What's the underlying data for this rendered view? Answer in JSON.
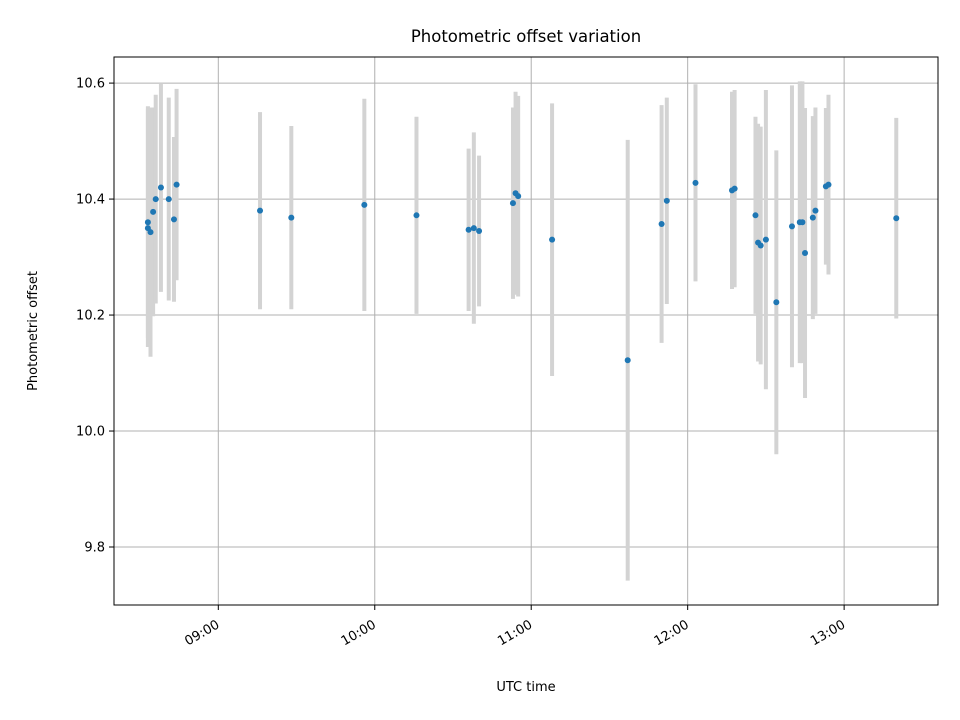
{
  "chart_data": {
    "type": "scatter",
    "title": "Photometric offset variation",
    "xlabel": "UTC time",
    "ylabel": "Photometric offset",
    "grid": true,
    "legend": "none",
    "xlim": [
      "08:20",
      "13:36"
    ],
    "ylim": [
      9.7,
      10.645
    ],
    "x_ticks": [
      "09:00",
      "10:00",
      "11:00",
      "12:00",
      "13:00"
    ],
    "y_ticks": [
      9.8,
      10.0,
      10.2,
      10.4,
      10.6
    ],
    "y_tick_labels": [
      "9.8",
      "10.0",
      "10.2",
      "10.4",
      "10.6"
    ],
    "colors": {
      "marker": "#1f77b4",
      "errorbar": "#d3d3d3",
      "grid": "#b0b0b0"
    },
    "series": [
      {
        "points": [
          {
            "x": "08:33",
            "y": 10.35,
            "err": 0.205
          },
          {
            "x": "08:33",
            "y": 10.36,
            "err": 0.2
          },
          {
            "x": "08:34",
            "y": 10.343,
            "err": 0.215
          },
          {
            "x": "08:35",
            "y": 10.378,
            "err": 0.18
          },
          {
            "x": "08:36",
            "y": 10.4,
            "err": 0.18
          },
          {
            "x": "08:38",
            "y": 10.42,
            "err": 0.18
          },
          {
            "x": "08:41",
            "y": 10.4,
            "err": 0.175
          },
          {
            "x": "08:43",
            "y": 10.365,
            "err": 0.142
          },
          {
            "x": "08:44",
            "y": 10.425,
            "err": 0.165
          },
          {
            "x": "09:16",
            "y": 10.38,
            "err": 0.17
          },
          {
            "x": "09:28",
            "y": 10.368,
            "err": 0.158
          },
          {
            "x": "09:56",
            "y": 10.39,
            "err": 0.183
          },
          {
            "x": "10:16",
            "y": 10.372,
            "err": 0.17
          },
          {
            "x": "10:36",
            "y": 10.347,
            "err": 0.14
          },
          {
            "x": "10:38",
            "y": 10.35,
            "err": 0.165
          },
          {
            "x": "10:40",
            "y": 10.345,
            "err": 0.13
          },
          {
            "x": "10:53",
            "y": 10.393,
            "err": 0.165
          },
          {
            "x": "10:54",
            "y": 10.41,
            "err": 0.175
          },
          {
            "x": "10:55",
            "y": 10.405,
            "err": 0.173
          },
          {
            "x": "11:08",
            "y": 10.33,
            "err": 0.235
          },
          {
            "x": "11:37",
            "y": 10.122,
            "err": 0.38
          },
          {
            "x": "11:50",
            "y": 10.357,
            "err": 0.205
          },
          {
            "x": "11:52",
            "y": 10.397,
            "err": 0.178
          },
          {
            "x": "12:03",
            "y": 10.428,
            "err": 0.17
          },
          {
            "x": "12:17",
            "y": 10.415,
            "err": 0.17
          },
          {
            "x": "12:18",
            "y": 10.418,
            "err": 0.17
          },
          {
            "x": "12:26",
            "y": 10.372,
            "err": 0.17
          },
          {
            "x": "12:27",
            "y": 10.325,
            "err": 0.205
          },
          {
            "x": "12:28",
            "y": 10.32,
            "err": 0.205
          },
          {
            "x": "12:30",
            "y": 10.33,
            "err": 0.258
          },
          {
            "x": "12:34",
            "y": 10.222,
            "err": 0.262
          },
          {
            "x": "12:40",
            "y": 10.353,
            "err": 0.243
          },
          {
            "x": "12:43",
            "y": 10.36,
            "err": 0.243
          },
          {
            "x": "12:44",
            "y": 10.36,
            "err": 0.243
          },
          {
            "x": "12:45",
            "y": 10.307,
            "err": 0.25
          },
          {
            "x": "12:48",
            "y": 10.368,
            "err": 0.175
          },
          {
            "x": "12:49",
            "y": 10.38,
            "err": 0.178
          },
          {
            "x": "12:53",
            "y": 10.422,
            "err": 0.135
          },
          {
            "x": "12:54",
            "y": 10.425,
            "err": 0.155
          },
          {
            "x": "13:20",
            "y": 10.367,
            "err": 0.173
          }
        ]
      }
    ]
  }
}
